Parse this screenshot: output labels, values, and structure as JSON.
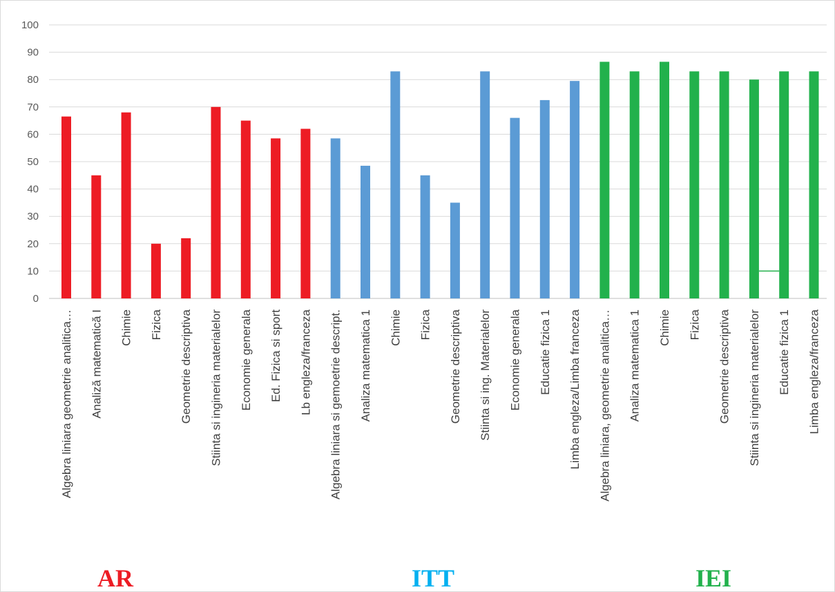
{
  "chart_data": {
    "type": "bar",
    "ylim": [
      0,
      100
    ],
    "yticks": [
      0,
      10,
      20,
      30,
      40,
      50,
      60,
      70,
      80,
      90,
      100
    ],
    "grid": true,
    "categories": [
      "Algebra liniara geometrie analitica…",
      "Analiză matematică I",
      "Chimie",
      "Fizica",
      "Geometrie descriptiva",
      "Stiinta si ingineria materialelor",
      "Economie generala",
      "Ed. Fizica si sport",
      "Lb engleza/franceza",
      "Algebra liniara si gemoetrie descript.",
      "Analiza matematica 1",
      "Chimie",
      "Fizica",
      "Geometrie descriptiva",
      "Stiinta si ing. Materialelor",
      "Economie generala",
      "Educatie fizica 1",
      "Limba engleza/Limba franceza",
      "Algebra liniara, geometrie analitica…",
      "Analiza matematica 1",
      "Chimie",
      "Fizica",
      "Geometrie descriptiva",
      "Stiinta si ingineria materialelor",
      "Educatie fizica 1",
      "Limba engleza/franceza"
    ],
    "values": [
      66.5,
      45,
      68,
      20,
      22,
      70,
      65,
      58.5,
      62,
      58.5,
      48.5,
      83,
      45,
      35,
      83,
      66,
      72.5,
      79.5,
      86.5,
      83,
      86.5,
      83,
      83,
      80,
      83,
      83
    ],
    "groups": [
      {
        "name": "AR",
        "start": 0,
        "end": 8,
        "color": "#ed1c24"
      },
      {
        "name": "ITT",
        "start": 9,
        "end": 17,
        "color": "#5b9bd5"
      },
      {
        "name": "IEI",
        "start": 18,
        "end": 25,
        "color": "#22b14c"
      }
    ]
  }
}
